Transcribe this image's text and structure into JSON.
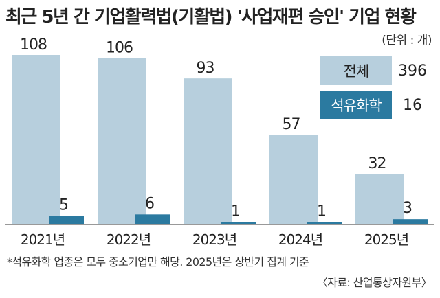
{
  "title": "최근 5년 간 기업활력법(기활법) '사업재편 승인' 기업 현황",
  "unit": "(단위 : 개)",
  "colors": {
    "total": "#b7cfdd",
    "petrochem": "#2b7aa0"
  },
  "summary": [
    {
      "label": "전체",
      "value": "396"
    },
    {
      "label": "석유화학",
      "value": "16"
    }
  ],
  "chart_data": {
    "type": "bar",
    "categories": [
      "2021년",
      "2022년",
      "2023년",
      "2024년",
      "2025년"
    ],
    "series": [
      {
        "values": [
          108,
          106,
          93,
          57,
          32
        ]
      },
      {
        "values": [
          5,
          6,
          1,
          1,
          3
        ]
      }
    ],
    "ylim": [
      0,
      120
    ],
    "grid": false
  },
  "note": "*석유화학 업종은 모두 중소기업만 해당. 2025년은 상반기 집계 기준",
  "source": "〈자료: 산업통상자원부〉"
}
